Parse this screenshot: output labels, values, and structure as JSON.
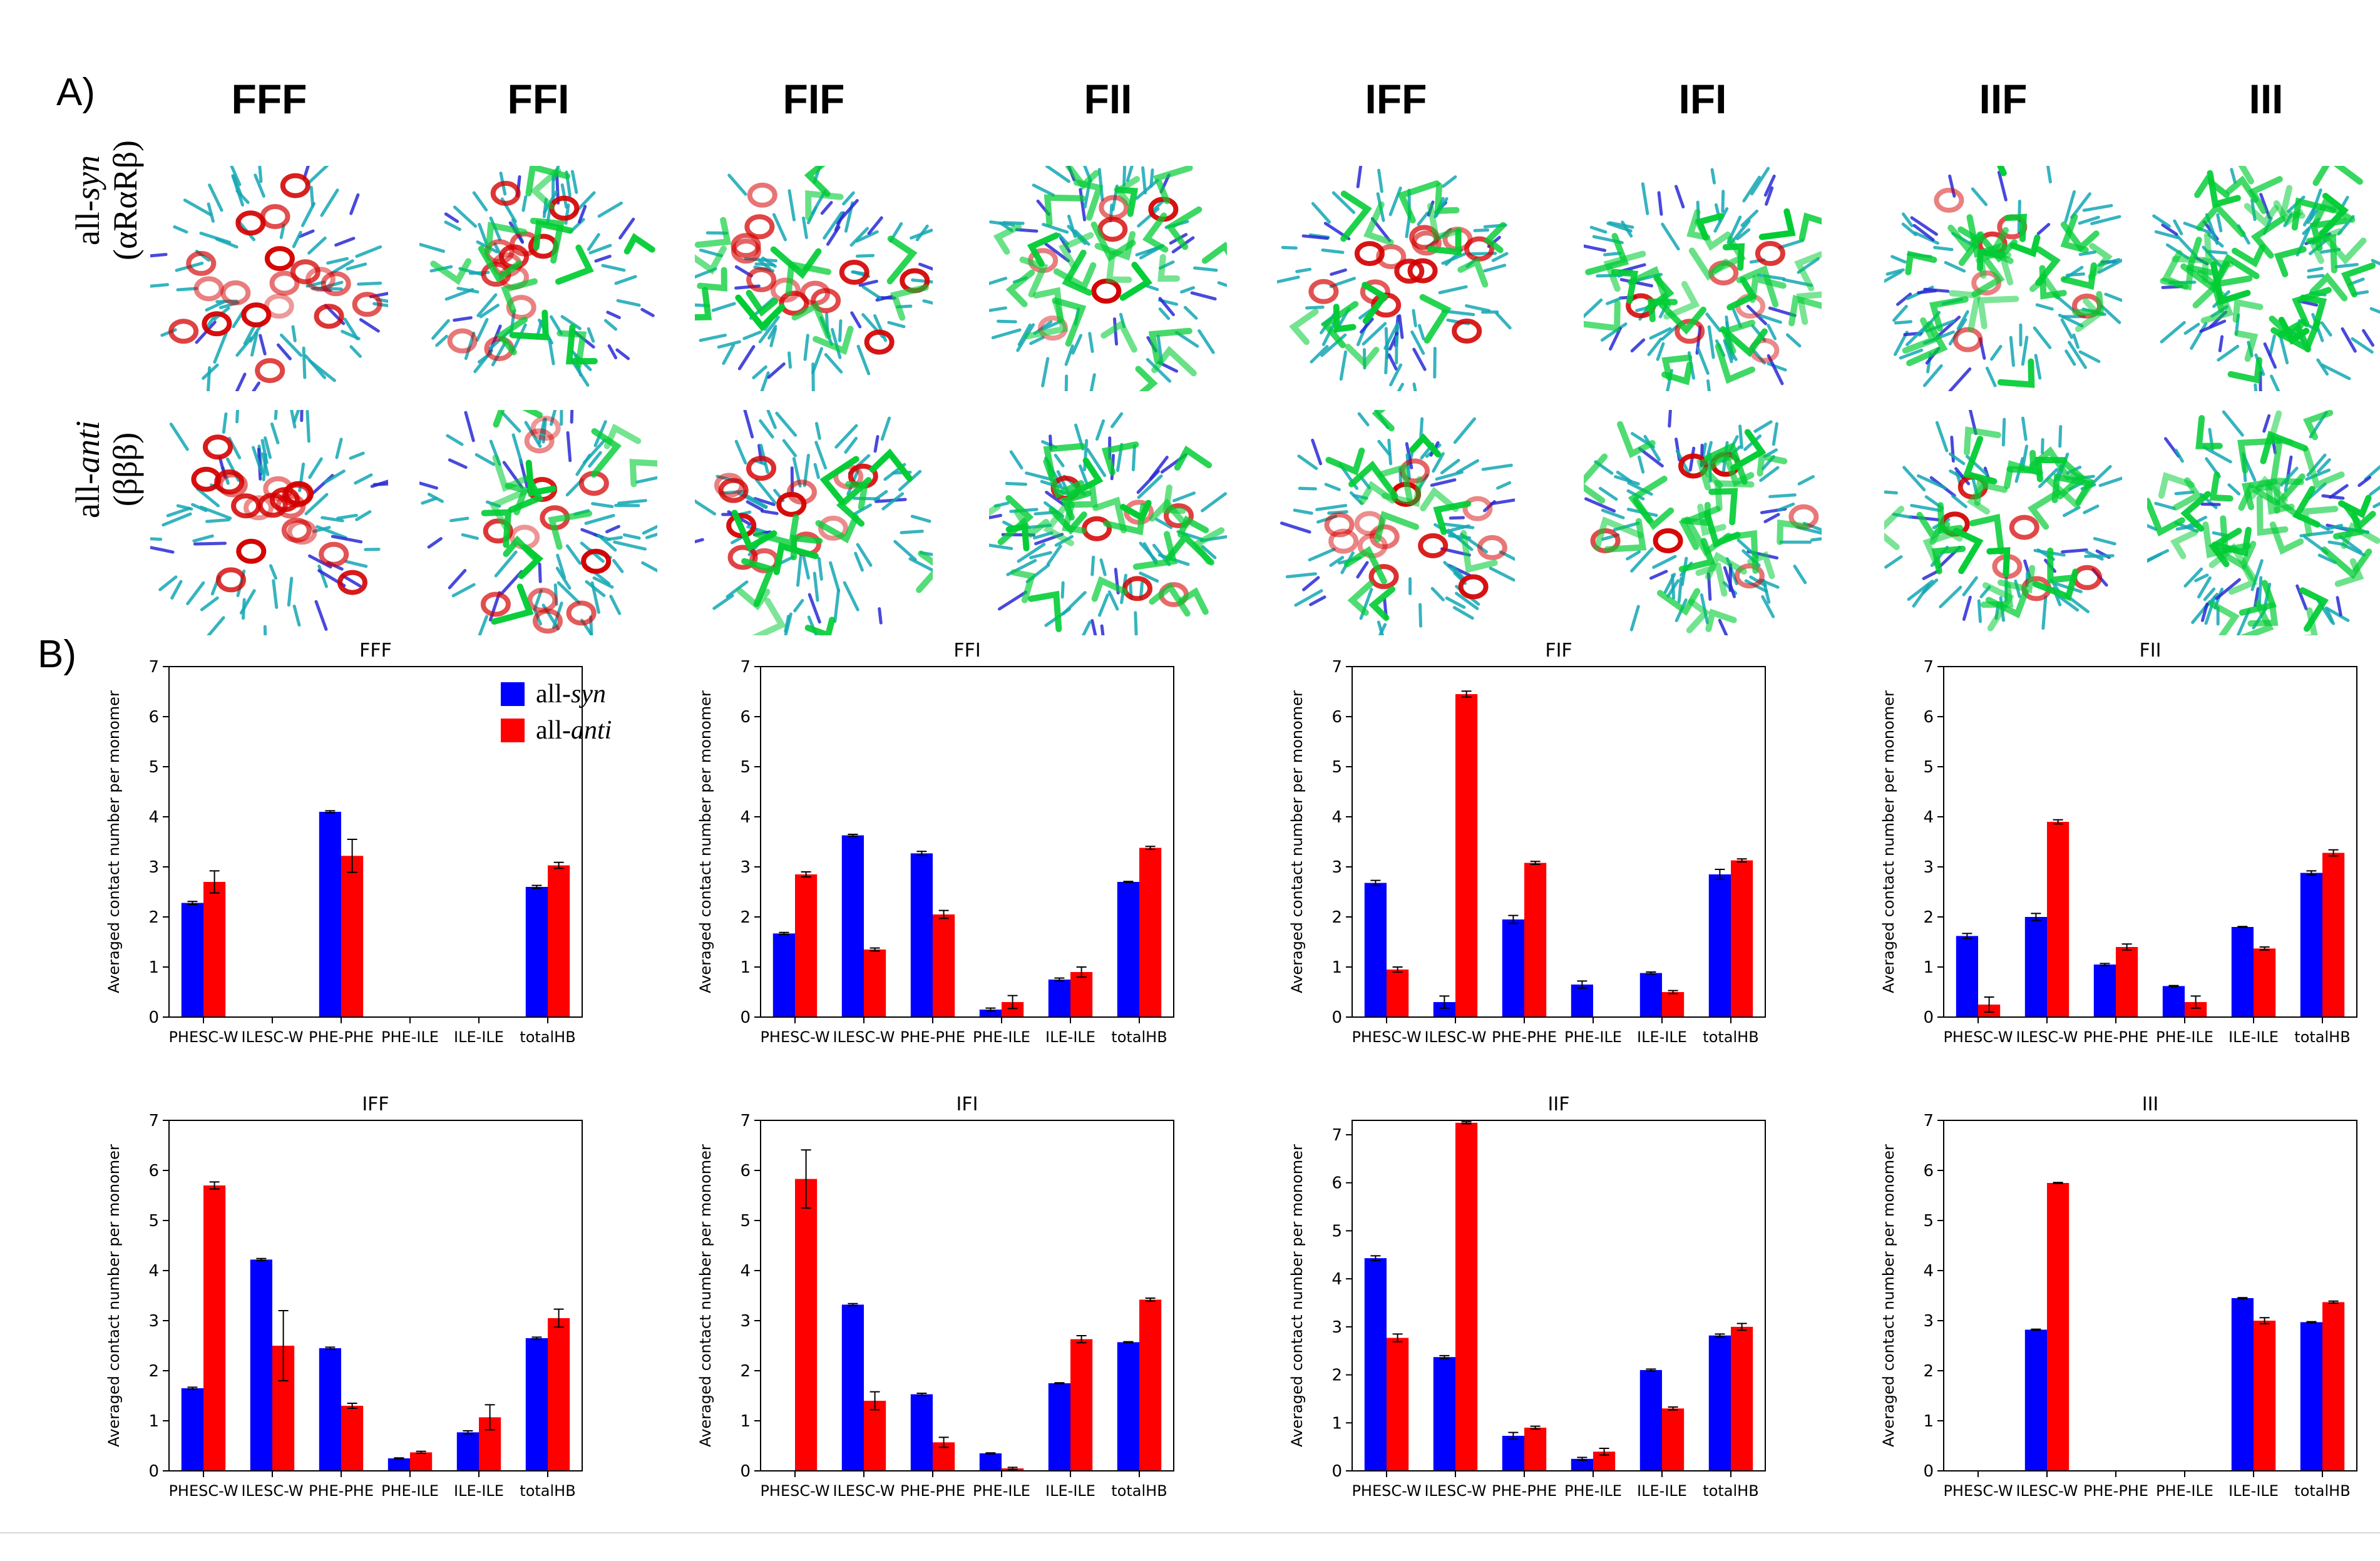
{
  "panel_labels": {
    "a": "A)",
    "b": "B)"
  },
  "structures": [
    "FFF",
    "FFI",
    "FIF",
    "FII",
    "IFF",
    "IFI",
    "IIF",
    "III"
  ],
  "row_labels": {
    "syn_prefix": "all-",
    "syn_word": "syn",
    "syn_sub": "(αRαRβ)",
    "anti_prefix": "all-",
    "anti_word": "anti",
    "anti_sub": "(βββ)"
  },
  "legend": {
    "syn": {
      "prefix": "all-",
      "word": "syn",
      "color": "#0000ff"
    },
    "anti": {
      "prefix": "all-",
      "word": "anti",
      "color": "#ff0000"
    }
  },
  "colors": {
    "phe": "#d40000",
    "ile": "#00cc33",
    "backbone": "#14a8b4",
    "nitrogen": "#2a2ad6"
  },
  "chart_data": [
    {
      "type": "bar",
      "title": "FFF",
      "ylabel": "Averaged contact number per monomer",
      "xlabel": "",
      "categories": [
        "PHESC-W",
        "ILESC-W",
        "PHE-PHE",
        "PHE-ILE",
        "ILE-ILE",
        "totalHB"
      ],
      "ylim": [
        0,
        7
      ],
      "series": [
        {
          "name": "all-syn",
          "values": [
            2.28,
            0,
            4.1,
            0,
            0,
            2.6
          ],
          "errors": [
            0.03,
            0,
            0.02,
            0,
            0,
            0.03
          ]
        },
        {
          "name": "all-anti",
          "values": [
            2.7,
            0,
            3.22,
            0,
            0,
            3.03
          ],
          "errors": [
            0.22,
            0,
            0.33,
            0,
            0,
            0.06
          ]
        }
      ]
    },
    {
      "type": "bar",
      "title": "FFI",
      "ylabel": "Averaged contact number per monomer",
      "xlabel": "",
      "categories": [
        "PHESC-W",
        "ILESC-W",
        "PHE-PHE",
        "PHE-ILE",
        "ILE-ILE",
        "totalHB"
      ],
      "ylim": [
        0,
        7
      ],
      "series": [
        {
          "name": "all-syn",
          "values": [
            1.67,
            3.63,
            3.27,
            0.15,
            0.75,
            2.7
          ],
          "errors": [
            0.02,
            0.02,
            0.04,
            0.03,
            0.03,
            0.01
          ]
        },
        {
          "name": "all-anti",
          "values": [
            2.85,
            1.35,
            2.05,
            0.3,
            0.9,
            3.38
          ],
          "errors": [
            0.05,
            0.03,
            0.08,
            0.13,
            0.1,
            0.03
          ]
        }
      ]
    },
    {
      "type": "bar",
      "title": "FIF",
      "ylabel": "Averaged contact number per monomer",
      "xlabel": "",
      "categories": [
        "PHESC-W",
        "ILESC-W",
        "PHE-PHE",
        "PHE-ILE",
        "ILE-ILE",
        "totalHB"
      ],
      "ylim": [
        0,
        7
      ],
      "series": [
        {
          "name": "all-syn",
          "values": [
            2.68,
            0.3,
            1.95,
            0.65,
            0.88,
            2.85
          ],
          "errors": [
            0.05,
            0.12,
            0.08,
            0.07,
            0.02,
            0.1
          ]
        },
        {
          "name": "all-anti",
          "values": [
            0.95,
            6.45,
            3.08,
            0,
            0.5,
            3.13
          ],
          "errors": [
            0.05,
            0.06,
            0.03,
            0,
            0.03,
            0.03
          ]
        }
      ]
    },
    {
      "type": "bar",
      "title": "FII",
      "ylabel": "Averaged contact number per monomer",
      "xlabel": "",
      "categories": [
        "PHESC-W",
        "ILESC-W",
        "PHE-PHE",
        "PHE-ILE",
        "ILE-ILE",
        "totalHB"
      ],
      "ylim": [
        0,
        7
      ],
      "series": [
        {
          "name": "all-syn",
          "values": [
            1.62,
            2.0,
            1.05,
            0.62,
            1.8,
            2.88
          ],
          "errors": [
            0.05,
            0.07,
            0.02,
            0.01,
            0.01,
            0.04
          ]
        },
        {
          "name": "all-anti",
          "values": [
            0.25,
            3.9,
            1.4,
            0.3,
            1.37,
            3.28
          ],
          "errors": [
            0.15,
            0.04,
            0.06,
            0.12,
            0.03,
            0.06
          ]
        }
      ]
    },
    {
      "type": "bar",
      "title": "IFF",
      "ylabel": "Averaged contact number per monomer",
      "xlabel": "",
      "categories": [
        "PHESC-W",
        "ILESC-W",
        "PHE-PHE",
        "PHE-ILE",
        "ILE-ILE",
        "totalHB"
      ],
      "ylim": [
        0,
        7
      ],
      "series": [
        {
          "name": "all-syn",
          "values": [
            1.65,
            4.22,
            2.45,
            0.25,
            0.77,
            2.65
          ],
          "errors": [
            0.02,
            0.02,
            0.02,
            0.01,
            0.03,
            0.02
          ]
        },
        {
          "name": "all-anti",
          "values": [
            5.7,
            2.5,
            1.3,
            0.37,
            1.07,
            3.05
          ],
          "errors": [
            0.07,
            0.7,
            0.05,
            0.02,
            0.25,
            0.18
          ]
        }
      ]
    },
    {
      "type": "bar",
      "title": "IFI",
      "ylabel": "Averaged contact number per monomer",
      "xlabel": "",
      "categories": [
        "PHESC-W",
        "ILESC-W",
        "PHE-PHE",
        "PHE-ILE",
        "ILE-ILE",
        "totalHB"
      ],
      "ylim": [
        0,
        7
      ],
      "series": [
        {
          "name": "all-syn",
          "values": [
            0,
            3.32,
            1.53,
            0.35,
            1.75,
            2.57
          ],
          "errors": [
            0,
            0.02,
            0.02,
            0.01,
            0.01,
            0.01
          ]
        },
        {
          "name": "all-anti",
          "values": [
            5.83,
            1.4,
            0.57,
            0.05,
            2.63,
            3.42
          ],
          "errors": [
            0.58,
            0.18,
            0.1,
            0.02,
            0.07,
            0.03
          ]
        }
      ]
    },
    {
      "type": "bar",
      "title": "IIF",
      "ylabel": "Averaged contact number per monomer",
      "xlabel": "",
      "categories": [
        "PHESC-W",
        "ILESC-W",
        "PHE-PHE",
        "PHE-ILE",
        "ILE-ILE",
        "totalHB"
      ],
      "ylim": [
        0,
        7.3
      ],
      "series": [
        {
          "name": "all-syn",
          "values": [
            4.43,
            2.37,
            0.73,
            0.25,
            2.1,
            2.82
          ],
          "errors": [
            0.05,
            0.03,
            0.07,
            0.03,
            0.02,
            0.03
          ]
        },
        {
          "name": "all-anti",
          "values": [
            2.77,
            7.25,
            0.9,
            0.4,
            1.3,
            3.0
          ],
          "errors": [
            0.08,
            0.02,
            0.03,
            0.07,
            0.03,
            0.07
          ]
        }
      ]
    },
    {
      "type": "bar",
      "title": "III",
      "ylabel": "Averaged contact number per monomer",
      "xlabel": "",
      "categories": [
        "PHESC-W",
        "ILESC-W",
        "PHE-PHE",
        "PHE-ILE",
        "ILE-ILE",
        "totalHB"
      ],
      "ylim": [
        0,
        7
      ],
      "series": [
        {
          "name": "all-syn",
          "values": [
            0,
            2.82,
            0,
            0,
            3.45,
            2.97
          ],
          "errors": [
            0,
            0.01,
            0,
            0,
            0.01,
            0.01
          ]
        },
        {
          "name": "all-anti",
          "values": [
            0,
            5.75,
            0,
            0,
            3.0,
            3.37
          ],
          "errors": [
            0,
            0.01,
            0,
            0,
            0.06,
            0.02
          ]
        }
      ]
    }
  ]
}
